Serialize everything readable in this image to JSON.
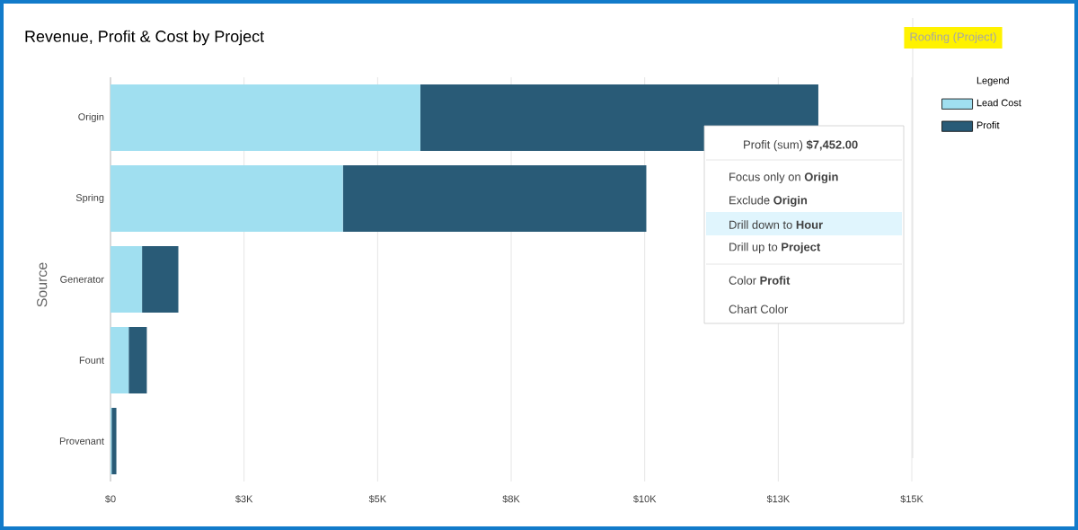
{
  "chart_data": {
    "type": "bar",
    "orientation": "horizontal",
    "stacked": true,
    "title": "Revenue, Profit & Cost by Project",
    "ylabel": "Source",
    "legend_title": "Legend",
    "legend": "right",
    "grid": "x",
    "categories": [
      "Origin",
      "Spring",
      "Generator",
      "Fount",
      "Provenant"
    ],
    "series": [
      {
        "name": "Lead Cost",
        "color": "#a0dff0",
        "values": [
          5800,
          4350,
          590,
          340,
          20
        ]
      },
      {
        "name": "Profit",
        "color": "#295b77",
        "values": [
          7450,
          5680,
          680,
          340,
          90
        ]
      }
    ],
    "xlim": [
      0,
      15000
    ],
    "xticks": [
      {
        "value": 0,
        "label": "$0"
      },
      {
        "value": 2500,
        "label": "$3K"
      },
      {
        "value": 5000,
        "label": "$5K"
      },
      {
        "value": 7500,
        "label": "$8K"
      },
      {
        "value": 10000,
        "label": "$10K"
      },
      {
        "value": 12500,
        "label": "$13K"
      },
      {
        "value": 15000,
        "label": "$15K"
      }
    ],
    "annotations": [
      "Roofing (Project)",
      "Profit (sum) **$7,452.00**",
      "Focus only on **Origin**",
      "Exclude **Origin**",
      "Drill down to **Hour**",
      "Drill up to **Project**",
      "Color **Profit**",
      "Chart Color"
    ]
  }
}
